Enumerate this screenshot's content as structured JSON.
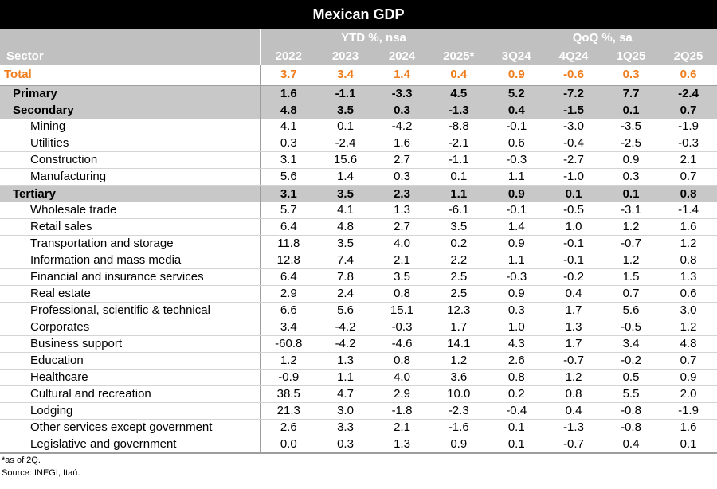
{
  "title": "Mexican GDP",
  "groups": {
    "ytd": "YTD %, nsa",
    "qoq": "QoQ %, sa"
  },
  "header": {
    "sector": "Sector",
    "columns": [
      "2022",
      "2023",
      "2024",
      "2025*",
      "3Q24",
      "4Q24",
      "1Q25",
      "2Q25"
    ]
  },
  "rows": [
    {
      "label": "Total",
      "kind": "total",
      "values": [
        "3.7",
        "3.4",
        "1.4",
        "0.4",
        "0.9",
        "-0.6",
        "0.3",
        "0.6"
      ]
    },
    {
      "label": "Primary",
      "kind": "major",
      "values": [
        "1.6",
        "-1.1",
        "-3.3",
        "4.5",
        "5.2",
        "-7.2",
        "7.7",
        "-2.4"
      ]
    },
    {
      "label": "Secondary",
      "kind": "major",
      "values": [
        "4.8",
        "3.5",
        "0.3",
        "-1.3",
        "0.4",
        "-1.5",
        "0.1",
        "0.7"
      ]
    },
    {
      "label": "Mining",
      "kind": "sub",
      "values": [
        "4.1",
        "0.1",
        "-4.2",
        "-8.8",
        "-0.1",
        "-3.0",
        "-3.5",
        "-1.9"
      ]
    },
    {
      "label": "Utilities",
      "kind": "sub",
      "values": [
        "0.3",
        "-2.4",
        "1.6",
        "-2.1",
        "0.6",
        "-0.4",
        "-2.5",
        "-0.3"
      ]
    },
    {
      "label": "Construction",
      "kind": "sub",
      "values": [
        "3.1",
        "15.6",
        "2.7",
        "-1.1",
        "-0.3",
        "-2.7",
        "0.9",
        "2.1"
      ]
    },
    {
      "label": "Manufacturing",
      "kind": "sub",
      "values": [
        "5.6",
        "1.4",
        "0.3",
        "0.1",
        "1.1",
        "-1.0",
        "0.3",
        "0.7"
      ]
    },
    {
      "label": "Tertiary",
      "kind": "major",
      "values": [
        "3.1",
        "3.5",
        "2.3",
        "1.1",
        "0.9",
        "0.1",
        "0.1",
        "0.8"
      ]
    },
    {
      "label": "Wholesale trade",
      "kind": "sub",
      "values": [
        "5.7",
        "4.1",
        "1.3",
        "-6.1",
        "-0.1",
        "-0.5",
        "-3.1",
        "-1.4"
      ]
    },
    {
      "label": "Retail sales",
      "kind": "sub",
      "values": [
        "6.4",
        "4.8",
        "2.7",
        "3.5",
        "1.4",
        "1.0",
        "1.2",
        "1.6"
      ]
    },
    {
      "label": "Transportation and storage",
      "kind": "sub",
      "values": [
        "11.8",
        "3.5",
        "4.0",
        "0.2",
        "0.9",
        "-0.1",
        "-0.7",
        "1.2"
      ]
    },
    {
      "label": "Information and mass media",
      "kind": "sub",
      "values": [
        "12.8",
        "7.4",
        "2.1",
        "2.2",
        "1.1",
        "-0.1",
        "1.2",
        "0.8"
      ]
    },
    {
      "label": "Financial and insurance services",
      "kind": "sub",
      "values": [
        "6.4",
        "7.8",
        "3.5",
        "2.5",
        "-0.3",
        "-0.2",
        "1.5",
        "1.3"
      ]
    },
    {
      "label": "Real estate",
      "kind": "sub",
      "values": [
        "2.9",
        "2.4",
        "0.8",
        "2.5",
        "0.9",
        "0.4",
        "0.7",
        "0.6"
      ]
    },
    {
      "label": "Professional, scientific & technical",
      "kind": "sub",
      "values": [
        "6.6",
        "5.6",
        "15.1",
        "12.3",
        "0.3",
        "1.7",
        "5.6",
        "3.0"
      ]
    },
    {
      "label": "Corporates",
      "kind": "sub",
      "values": [
        "3.4",
        "-4.2",
        "-0.3",
        "1.7",
        "1.0",
        "1.3",
        "-0.5",
        "1.2"
      ]
    },
    {
      "label": "Business support",
      "kind": "sub",
      "values": [
        "-60.8",
        "-4.2",
        "-4.6",
        "14.1",
        "4.3",
        "1.7",
        "3.4",
        "4.8"
      ]
    },
    {
      "label": "Education",
      "kind": "sub",
      "values": [
        "1.2",
        "1.3",
        "0.8",
        "1.2",
        "2.6",
        "-0.7",
        "-0.2",
        "0.7"
      ]
    },
    {
      "label": "Healthcare",
      "kind": "sub",
      "values": [
        "-0.9",
        "1.1",
        "4.0",
        "3.6",
        "0.8",
        "1.2",
        "0.5",
        "0.9"
      ]
    },
    {
      "label": "Cultural and recreation",
      "kind": "sub",
      "values": [
        "38.5",
        "4.7",
        "2.9",
        "10.0",
        "0.2",
        "0.8",
        "5.5",
        "2.0"
      ]
    },
    {
      "label": "Lodging",
      "kind": "sub",
      "values": [
        "21.3",
        "3.0",
        "-1.8",
        "-2.3",
        "-0.4",
        "0.4",
        "-0.8",
        "-1.9"
      ]
    },
    {
      "label": "Other services except government",
      "kind": "sub",
      "values": [
        "2.6",
        "3.3",
        "2.1",
        "-1.6",
        "0.1",
        "-1.3",
        "-0.8",
        "1.6"
      ]
    },
    {
      "label": "Legislative and government",
      "kind": "sub",
      "values": [
        "0.0",
        "0.3",
        "1.3",
        "0.9",
        "0.1",
        "-0.7",
        "0.4",
        "0.1"
      ]
    }
  ],
  "notes": {
    "footnote": "*as of 2Q.",
    "source": "Source: INEGI, Itaú."
  },
  "colors": {
    "title_bg": "#000000",
    "header_bg": "#c0c0c0",
    "major_bg": "#c8c8c8",
    "total_text": "#f07d1c"
  }
}
